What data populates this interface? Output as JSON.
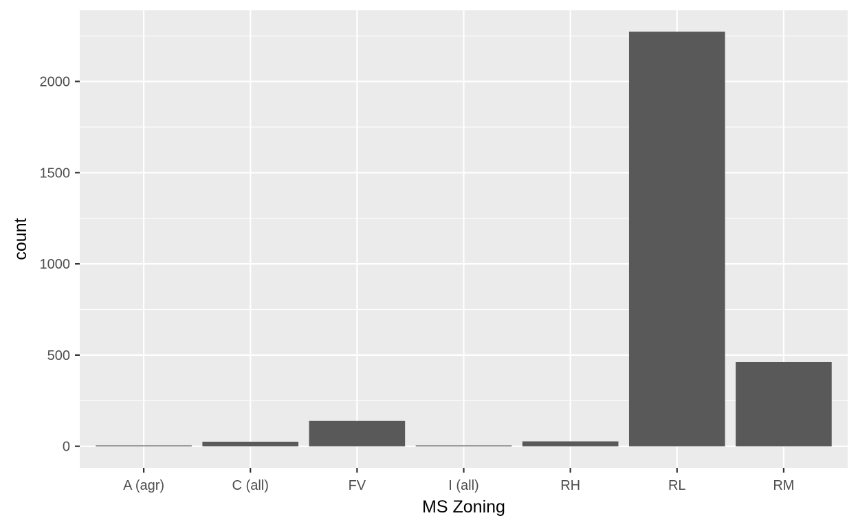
{
  "chart_data": {
    "type": "bar",
    "categories": [
      "A (agr)",
      "C (all)",
      "FV",
      "I (all)",
      "RH",
      "RL",
      "RM"
    ],
    "values": [
      2,
      25,
      139,
      2,
      27,
      2273,
      462
    ],
    "title": "",
    "xlabel": "MS Zoning",
    "ylabel": "count",
    "ylim": [
      -118,
      2390
    ],
    "yticks": [
      0,
      500,
      1000,
      1500,
      2000
    ],
    "ytick_labels": [
      "0",
      "500",
      "1000",
      "1500",
      "2000"
    ],
    "grid": true,
    "legend": "none",
    "colors": {
      "panel": "#ebebeb",
      "grid": "#ffffff",
      "bar": "#595959",
      "tick": "#4d4d4d",
      "axis_title": "#000000"
    }
  }
}
